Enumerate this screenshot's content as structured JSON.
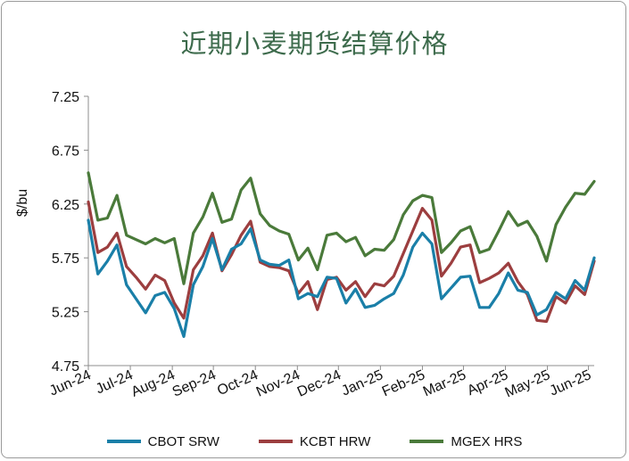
{
  "chart_data": {
    "type": "line",
    "title": "近期小麦期货结算价格",
    "ylabel": "$/bu",
    "ylim": [
      4.75,
      7.25
    ],
    "yticks": [
      "7.25",
      "6.75",
      "6.25",
      "5.75",
      "5.25",
      "4.75"
    ],
    "x_tick_labels": [
      "Jun-24",
      "Jul-24",
      "Aug-24",
      "Sep-24",
      "Oct-24",
      "Nov-24",
      "Dec-24",
      "Jan-25",
      "Feb-25",
      "Mar-25",
      "Apr-25",
      "May-25",
      "Jun-25"
    ],
    "x_range_weeks": [
      0,
      53
    ],
    "x_tick_weeks": [
      0,
      4.4,
      8.8,
      13.1,
      17.5,
      21.9,
      26.2,
      30.6,
      35.0,
      39.3,
      43.7,
      48.1,
      52.4
    ],
    "legend_position": "bottom",
    "grid": false,
    "series": [
      {
        "name": "CBOT SRW",
        "color": "#1a7fa8",
        "x": [
          0,
          1,
          2,
          3,
          4,
          5,
          6,
          7,
          8,
          9,
          10,
          11,
          12,
          13,
          14,
          15,
          16,
          17,
          18,
          19,
          20,
          21,
          22,
          23,
          24,
          25,
          26,
          27,
          28,
          29,
          30,
          31,
          32,
          33,
          34,
          35,
          36,
          37,
          38,
          39,
          40,
          41,
          42,
          43,
          44,
          45,
          46,
          47,
          48,
          49,
          50,
          51,
          52,
          53
        ],
        "values": [
          6.1,
          5.6,
          5.72,
          5.87,
          5.5,
          5.37,
          5.24,
          5.4,
          5.43,
          5.28,
          5.02,
          5.5,
          5.67,
          5.93,
          5.64,
          5.83,
          5.88,
          6.02,
          5.73,
          5.69,
          5.68,
          5.73,
          5.37,
          5.42,
          5.39,
          5.57,
          5.56,
          5.33,
          5.46,
          5.29,
          5.31,
          5.37,
          5.42,
          5.59,
          5.85,
          5.98,
          5.88,
          5.37,
          5.47,
          5.57,
          5.58,
          5.29,
          5.29,
          5.42,
          5.61,
          5.45,
          5.43,
          5.22,
          5.27,
          5.43,
          5.37,
          5.54,
          5.45,
          5.75
        ]
      },
      {
        "name": "KCBT HRW",
        "color": "#9c3e3f",
        "x": [
          0,
          1,
          2,
          3,
          4,
          5,
          6,
          7,
          8,
          9,
          10,
          11,
          12,
          13,
          14,
          15,
          16,
          17,
          18,
          19,
          20,
          21,
          22,
          23,
          24,
          25,
          26,
          27,
          28,
          29,
          30,
          31,
          32,
          33,
          34,
          35,
          36,
          37,
          38,
          39,
          40,
          41,
          42,
          43,
          44,
          45,
          46,
          47,
          48,
          49,
          50,
          51,
          52,
          53
        ],
        "values": [
          6.27,
          5.8,
          5.85,
          5.98,
          5.67,
          5.57,
          5.46,
          5.59,
          5.54,
          5.33,
          5.19,
          5.64,
          5.77,
          5.98,
          5.63,
          5.78,
          5.96,
          6.09,
          5.71,
          5.67,
          5.66,
          5.63,
          5.42,
          5.53,
          5.27,
          5.55,
          5.57,
          5.45,
          5.53,
          5.39,
          5.51,
          5.49,
          5.58,
          5.79,
          6.0,
          6.21,
          6.1,
          5.58,
          5.7,
          5.85,
          5.87,
          5.52,
          5.56,
          5.61,
          5.7,
          5.53,
          5.41,
          5.17,
          5.16,
          5.39,
          5.33,
          5.49,
          5.41,
          5.72
        ]
      },
      {
        "name": "MGEX HRS",
        "color": "#4a7a3a",
        "x": [
          0,
          1,
          2,
          3,
          4,
          5,
          6,
          7,
          8,
          9,
          10,
          11,
          12,
          13,
          14,
          15,
          16,
          17,
          18,
          19,
          20,
          21,
          22,
          23,
          24,
          25,
          26,
          27,
          28,
          29,
          30,
          31,
          32,
          33,
          34,
          35,
          36,
          37,
          38,
          39,
          40,
          41,
          42,
          43,
          44,
          45,
          46,
          47,
          48,
          49,
          50,
          51,
          52,
          53
        ],
        "values": [
          6.54,
          6.1,
          6.12,
          6.33,
          5.96,
          5.92,
          5.88,
          5.93,
          5.89,
          5.93,
          5.51,
          5.98,
          6.13,
          6.35,
          6.08,
          6.11,
          6.38,
          6.49,
          6.16,
          6.05,
          6.0,
          5.97,
          5.73,
          5.84,
          5.64,
          5.96,
          5.98,
          5.9,
          5.94,
          5.77,
          5.83,
          5.82,
          5.92,
          6.15,
          6.28,
          6.33,
          6.31,
          5.8,
          5.89,
          6.0,
          6.04,
          5.8,
          5.83,
          6.0,
          6.18,
          6.05,
          6.09,
          5.95,
          5.72,
          6.06,
          6.22,
          6.35,
          6.34,
          6.46
        ]
      }
    ]
  }
}
